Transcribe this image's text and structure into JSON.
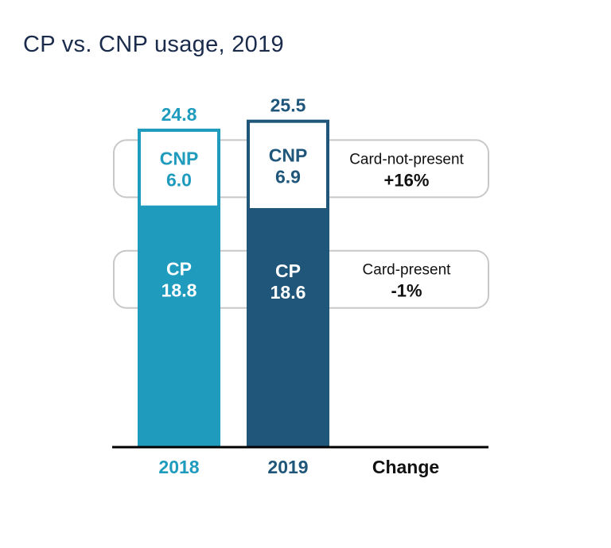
{
  "title": "CP vs. CNP usage, 2019",
  "chart_data": {
    "type": "bar",
    "stacked": true,
    "categories": [
      "2018",
      "2019"
    ],
    "series": [
      {
        "name": "CP",
        "values": [
          18.8,
          18.6
        ]
      },
      {
        "name": "CNP",
        "values": [
          6.0,
          6.9
        ]
      }
    ],
    "totals": [
      "24.8",
      "25.5"
    ],
    "segment_labels": {
      "CP": [
        "CP",
        "CP"
      ],
      "CNP": [
        "CNP",
        "CNP"
      ]
    },
    "segment_value_labels": {
      "CP": [
        "18.8",
        "18.6"
      ],
      "CNP": [
        "6.0",
        "6.9"
      ]
    },
    "change_column_label": "Change",
    "changes": [
      {
        "series": "CNP",
        "label": "Card-not-present",
        "value": "+16%"
      },
      {
        "series": "CP",
        "label": "Card-present",
        "value": "-1%"
      }
    ],
    "colors": {
      "2018": "#1e9bbd",
      "2019": "#1f567a",
      "axis": "#000000",
      "callout_border": "#c8c8c8",
      "change_text": "#111111"
    }
  }
}
